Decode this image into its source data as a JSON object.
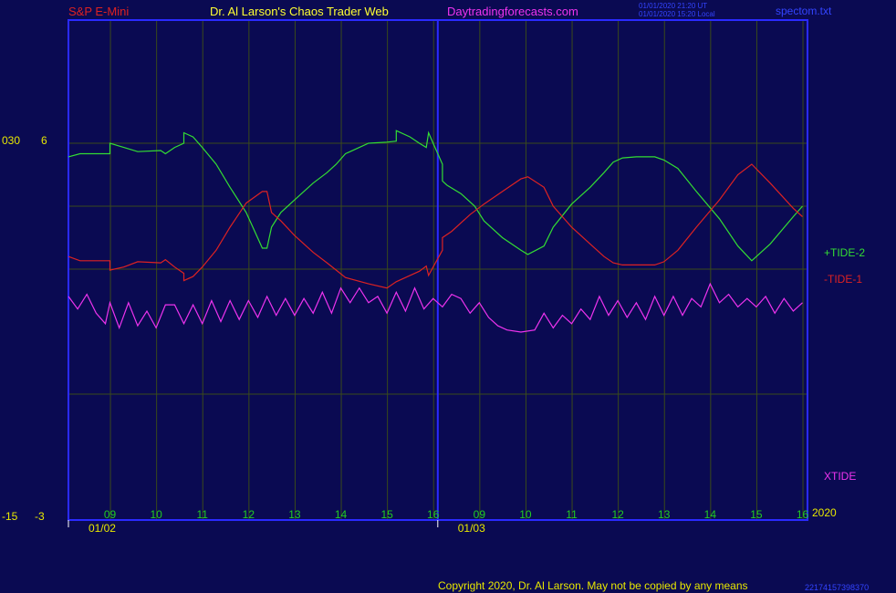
{
  "header": {
    "instrument": "S&P E-Mini",
    "author": "Dr. Al Larson's Chaos Trader Web",
    "site": "Daytradingforecasts.com",
    "stamp_line1": "01/01/2020 21:20 UT",
    "stamp_line2": "01/01/2020 15:20 Local",
    "file": "spectom.txt"
  },
  "axis": {
    "left_top_a": "030",
    "left_top_b": "6",
    "left_bottom_a": "-15",
    "left_bottom_b": "-3",
    "year": "2020"
  },
  "footer": {
    "copyright": "Copyright 2020, Dr. Al Larson. May not be copied by any means",
    "code": "22174157398370"
  },
  "colors": {
    "background": "#0a0a52",
    "frame": "#2a2aff",
    "grid": "#3a4a1a",
    "tide2": "#33dd33",
    "tide1": "#dd2222",
    "xtide": "#ee33ee",
    "hour_label": "#22cc22",
    "date_label": "#e8e800"
  },
  "chart_data": {
    "type": "line",
    "x_unit": "hour index",
    "xlim": [
      0,
      16
    ],
    "ylim": [
      -3,
      6
    ],
    "hour_labels": [
      {
        "x": 0.9,
        "label": "09"
      },
      {
        "x": 1.9,
        "label": "10"
      },
      {
        "x": 2.9,
        "label": "11"
      },
      {
        "x": 3.9,
        "label": "12"
      },
      {
        "x": 4.9,
        "label": "13"
      },
      {
        "x": 5.9,
        "label": "14"
      },
      {
        "x": 6.9,
        "label": "15"
      },
      {
        "x": 7.9,
        "label": "16"
      },
      {
        "x": 8.9,
        "label": "09"
      },
      {
        "x": 9.9,
        "label": "10"
      },
      {
        "x": 10.9,
        "label": "11"
      },
      {
        "x": 11.9,
        "label": "12"
      },
      {
        "x": 12.9,
        "label": "13"
      },
      {
        "x": 13.9,
        "label": "14"
      },
      {
        "x": 14.9,
        "label": "15"
      },
      {
        "x": 15.9,
        "label": "16"
      }
    ],
    "date_labels": [
      {
        "x": 0.75,
        "label": "01/02"
      },
      {
        "x": 8.75,
        "label": "01/03"
      }
    ],
    "session_divider_x": 8.0,
    "series": [
      {
        "name": "+TIDE-2",
        "color_key": "tide2",
        "points": [
          [
            0,
            5.35
          ],
          [
            0.25,
            5.5
          ],
          [
            0.9,
            5.5
          ],
          [
            0.9,
            6.0
          ],
          [
            1.2,
            5.8
          ],
          [
            1.5,
            5.6
          ],
          [
            2.0,
            5.65
          ],
          [
            2.1,
            5.5
          ],
          [
            2.3,
            5.8
          ],
          [
            2.5,
            6.0
          ],
          [
            2.5,
            6.5
          ],
          [
            2.7,
            6.3
          ],
          [
            2.9,
            5.8
          ],
          [
            3.2,
            5.0
          ],
          [
            3.5,
            3.9
          ],
          [
            3.85,
            2.7
          ],
          [
            4.2,
            1.0
          ],
          [
            4.3,
            1.0
          ],
          [
            4.4,
            2.0
          ],
          [
            4.6,
            2.7
          ],
          [
            4.9,
            3.3
          ],
          [
            5.3,
            4.1
          ],
          [
            5.6,
            4.6
          ],
          [
            5.8,
            5.0
          ],
          [
            6.0,
            5.5
          ],
          [
            6.5,
            6.0
          ],
          [
            6.9,
            6.05
          ],
          [
            7.1,
            6.1
          ],
          [
            7.1,
            6.6
          ],
          [
            7.4,
            6.3
          ],
          [
            7.6,
            6.0
          ],
          [
            7.75,
            5.8
          ],
          [
            7.8,
            6.5
          ],
          [
            7.9,
            6.0
          ],
          [
            8.1,
            5.0
          ],
          [
            8.1,
            4.2
          ],
          [
            8.2,
            4.0
          ],
          [
            8.5,
            3.6
          ],
          [
            8.8,
            3.0
          ],
          [
            9.0,
            2.3
          ],
          [
            9.4,
            1.5
          ],
          [
            9.8,
            0.9
          ],
          [
            9.95,
            0.7
          ],
          [
            10.3,
            1.1
          ],
          [
            10.5,
            2.0
          ],
          [
            10.9,
            3.1
          ],
          [
            11.3,
            3.9
          ],
          [
            11.6,
            4.6
          ],
          [
            11.8,
            5.1
          ],
          [
            12.0,
            5.3
          ],
          [
            12.3,
            5.35
          ],
          [
            12.7,
            5.35
          ],
          [
            12.9,
            5.2
          ],
          [
            13.2,
            4.8
          ],
          [
            13.6,
            3.7
          ],
          [
            14.1,
            2.4
          ],
          [
            14.5,
            1.1
          ],
          [
            14.8,
            0.4
          ],
          [
            15.2,
            1.2
          ],
          [
            15.7,
            2.5
          ],
          [
            15.9,
            3.0
          ]
        ]
      },
      {
        "name": "-TIDE-1",
        "color_key": "tide1",
        "points": [
          [
            0,
            0.6
          ],
          [
            0.25,
            0.4
          ],
          [
            0.9,
            0.4
          ],
          [
            0.9,
            -0.05
          ],
          [
            1.2,
            0.1
          ],
          [
            1.5,
            0.35
          ],
          [
            2.0,
            0.3
          ],
          [
            2.1,
            0.45
          ],
          [
            2.3,
            0.1
          ],
          [
            2.5,
            -0.2
          ],
          [
            2.5,
            -0.55
          ],
          [
            2.7,
            -0.35
          ],
          [
            2.9,
            0.1
          ],
          [
            3.2,
            0.9
          ],
          [
            3.5,
            2.0
          ],
          [
            3.85,
            3.15
          ],
          [
            4.2,
            3.7
          ],
          [
            4.3,
            3.7
          ],
          [
            4.4,
            2.7
          ],
          [
            4.6,
            2.3
          ],
          [
            4.9,
            1.6
          ],
          [
            5.3,
            0.8
          ],
          [
            5.6,
            0.3
          ],
          [
            5.8,
            -0.05
          ],
          [
            6.0,
            -0.4
          ],
          [
            6.5,
            -0.7
          ],
          [
            6.9,
            -0.9
          ],
          [
            7.1,
            -0.6
          ],
          [
            7.4,
            -0.3
          ],
          [
            7.6,
            -0.1
          ],
          [
            7.75,
            0.15
          ],
          [
            7.8,
            -0.3
          ],
          [
            7.9,
            0.1
          ],
          [
            8.1,
            0.9
          ],
          [
            8.1,
            1.5
          ],
          [
            8.3,
            1.8
          ],
          [
            8.7,
            2.6
          ],
          [
            9.0,
            3.1
          ],
          [
            9.4,
            3.7
          ],
          [
            9.8,
            4.3
          ],
          [
            9.95,
            4.4
          ],
          [
            10.3,
            3.9
          ],
          [
            10.5,
            3.0
          ],
          [
            10.9,
            2.0
          ],
          [
            11.3,
            1.2
          ],
          [
            11.6,
            0.6
          ],
          [
            11.8,
            0.3
          ],
          [
            12.0,
            0.2
          ],
          [
            12.3,
            0.2
          ],
          [
            12.7,
            0.2
          ],
          [
            12.9,
            0.35
          ],
          [
            13.2,
            0.9
          ],
          [
            13.6,
            2.0
          ],
          [
            14.1,
            3.3
          ],
          [
            14.5,
            4.5
          ],
          [
            14.8,
            5.0
          ],
          [
            15.2,
            4.1
          ],
          [
            15.7,
            2.9
          ],
          [
            15.9,
            2.5
          ]
        ]
      },
      {
        "name": "XTIDE",
        "color_key": "xtide",
        "points": [
          [
            0,
            -1.3
          ],
          [
            0.2,
            -1.9
          ],
          [
            0.4,
            -1.2
          ],
          [
            0.6,
            -2.1
          ],
          [
            0.8,
            -2.6
          ],
          [
            0.9,
            -1.6
          ],
          [
            1.1,
            -2.8
          ],
          [
            1.3,
            -1.6
          ],
          [
            1.5,
            -2.7
          ],
          [
            1.7,
            -2.0
          ],
          [
            1.9,
            -2.8
          ],
          [
            2.1,
            -1.7
          ],
          [
            2.3,
            -1.7
          ],
          [
            2.5,
            -2.6
          ],
          [
            2.7,
            -1.7
          ],
          [
            2.9,
            -2.6
          ],
          [
            3.1,
            -1.5
          ],
          [
            3.3,
            -2.5
          ],
          [
            3.5,
            -1.5
          ],
          [
            3.7,
            -2.4
          ],
          [
            3.9,
            -1.5
          ],
          [
            4.1,
            -2.3
          ],
          [
            4.3,
            -1.3
          ],
          [
            4.5,
            -2.2
          ],
          [
            4.7,
            -1.4
          ],
          [
            4.9,
            -2.2
          ],
          [
            5.1,
            -1.4
          ],
          [
            5.3,
            -2.1
          ],
          [
            5.5,
            -1.1
          ],
          [
            5.7,
            -2.1
          ],
          [
            5.9,
            -0.9
          ],
          [
            6.1,
            -1.6
          ],
          [
            6.3,
            -0.9
          ],
          [
            6.5,
            -1.6
          ],
          [
            6.7,
            -1.3
          ],
          [
            6.9,
            -2.1
          ],
          [
            7.1,
            -1.1
          ],
          [
            7.3,
            -2.0
          ],
          [
            7.5,
            -0.9
          ],
          [
            7.7,
            -1.9
          ],
          [
            7.9,
            -1.4
          ],
          [
            8.1,
            -1.8
          ],
          [
            8.3,
            -1.2
          ],
          [
            8.5,
            -1.4
          ],
          [
            8.7,
            -2.1
          ],
          [
            8.9,
            -1.6
          ],
          [
            9.1,
            -2.3
          ],
          [
            9.3,
            -2.7
          ],
          [
            9.5,
            -2.9
          ],
          [
            9.8,
            -3.0
          ],
          [
            10.1,
            -2.9
          ],
          [
            10.3,
            -2.1
          ],
          [
            10.5,
            -2.8
          ],
          [
            10.7,
            -2.2
          ],
          [
            10.9,
            -2.6
          ],
          [
            11.1,
            -1.9
          ],
          [
            11.3,
            -2.4
          ],
          [
            11.5,
            -1.3
          ],
          [
            11.7,
            -2.2
          ],
          [
            11.9,
            -1.5
          ],
          [
            12.1,
            -2.3
          ],
          [
            12.3,
            -1.6
          ],
          [
            12.5,
            -2.4
          ],
          [
            12.7,
            -1.3
          ],
          [
            12.9,
            -2.2
          ],
          [
            13.1,
            -1.3
          ],
          [
            13.3,
            -2.2
          ],
          [
            13.5,
            -1.4
          ],
          [
            13.7,
            -1.8
          ],
          [
            13.9,
            -0.7
          ],
          [
            14.1,
            -1.6
          ],
          [
            14.3,
            -1.2
          ],
          [
            14.5,
            -1.8
          ],
          [
            14.7,
            -1.4
          ],
          [
            14.9,
            -1.8
          ],
          [
            15.1,
            -1.3
          ],
          [
            15.3,
            -2.1
          ],
          [
            15.5,
            -1.4
          ],
          [
            15.7,
            -2.0
          ],
          [
            15.9,
            -1.6
          ]
        ]
      }
    ],
    "series_labels": [
      {
        "text": "+TIDE-2",
        "color_key": "tide2"
      },
      {
        "text": "-TIDE-1",
        "color_key": "tide1"
      },
      {
        "text": "XTIDE",
        "color_key": "xtide"
      }
    ]
  }
}
